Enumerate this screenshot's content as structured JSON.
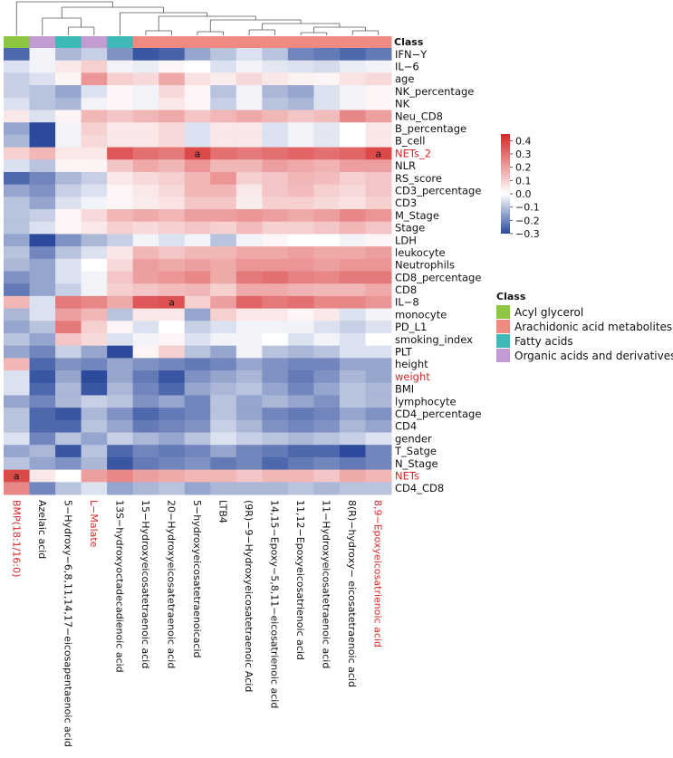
{
  "chart_data": {
    "type": "heatmap",
    "columns": [
      {
        "label": "BMP(18:1/16:0)",
        "class": "Acyl glycerol",
        "highlight": true
      },
      {
        "label": "Azelaic acid",
        "class": "Organic acids and derivatives",
        "highlight": false
      },
      {
        "label": "5−Hydroxy−6,8,11,14,17−eicosapentaenoic acid",
        "class": "Fatty acids",
        "highlight": false
      },
      {
        "label": "L−Malate",
        "class": "Organic acids and derivatives",
        "highlight": true
      },
      {
        "label": "13S−hydroxyoctadecadienoic acid",
        "class": "Fatty acids",
        "highlight": false
      },
      {
        "label": "15−Hydroxyeicosatetraenoic acid",
        "class": "Arachidonic acid metabolites",
        "highlight": false
      },
      {
        "label": "20−Hydroxyeicosatetraenoic acid",
        "class": "Arachidonic acid metabolites",
        "highlight": false
      },
      {
        "label": "5−hydroxyeicosatetraenoicacid",
        "class": "Arachidonic acid metabolites",
        "highlight": false
      },
      {
        "label": "LTB4",
        "class": "Arachidonic acid metabolites",
        "highlight": false
      },
      {
        "label": "(9R)−9−Hydroxyeicosatetraenoic Acid",
        "class": "Arachidonic acid metabolites",
        "highlight": false
      },
      {
        "label": "14,15−Epoxy−5,8,11−eicosatrienoic acid",
        "class": "Arachidonic acid metabolites",
        "highlight": false
      },
      {
        "label": "11,12−Epoxyeicosatrienoic acid",
        "class": "Arachidonic acid metabolites",
        "highlight": false
      },
      {
        "label": "11−Hydroxyeicosatetraenoic acid",
        "class": "Arachidonic acid metabolites",
        "highlight": false
      },
      {
        "label": "8(R)−hydroxy− eicosatetraenoic acid",
        "class": "Arachidonic acid metabolites",
        "highlight": false
      },
      {
        "label": "8,9−Epoxyeicosatrienoic acid",
        "class": "Arachidonic acid metabolites",
        "highlight": true
      }
    ],
    "rows": [
      {
        "label": "IFN−Y",
        "highlight": false,
        "values": [
          -0.25,
          -0.02,
          -0.12,
          -0.08,
          -0.18,
          -0.28,
          -0.26,
          -0.15,
          -0.1,
          -0.05,
          -0.1,
          -0.2,
          -0.22,
          -0.25,
          -0.22
        ]
      },
      {
        "label": "IL−6",
        "highlight": false,
        "values": [
          -0.05,
          -0.02,
          0.05,
          0.1,
          -0.02,
          -0.03,
          0.02,
          0.0,
          -0.05,
          -0.02,
          -0.04,
          -0.05,
          -0.06,
          -0.03,
          -0.02
        ]
      },
      {
        "label": "age",
        "highlight": false,
        "values": [
          -0.08,
          -0.05,
          0.02,
          0.22,
          0.1,
          0.08,
          0.18,
          0.06,
          0.04,
          0.08,
          0.05,
          0.03,
          0.02,
          0.06,
          0.08
        ]
      },
      {
        "label": "NK_percentage",
        "highlight": false,
        "values": [
          -0.08,
          -0.1,
          -0.15,
          -0.05,
          0.02,
          -0.02,
          0.08,
          0.02,
          -0.1,
          -0.02,
          -0.12,
          -0.15,
          -0.05,
          -0.02,
          0.02
        ]
      },
      {
        "label": "NK",
        "highlight": false,
        "values": [
          -0.05,
          -0.1,
          -0.12,
          -0.02,
          0.02,
          -0.02,
          0.05,
          0.02,
          -0.08,
          -0.02,
          -0.1,
          -0.12,
          -0.05,
          -0.02,
          0.02
        ]
      },
      {
        "label": "Neu_CD8",
        "highlight": false,
        "values": [
          0.05,
          -0.05,
          0.02,
          0.15,
          0.12,
          0.15,
          0.18,
          0.12,
          0.15,
          0.18,
          0.15,
          0.12,
          0.14,
          0.25,
          0.2
        ]
      },
      {
        "label": "B_percentage",
        "highlight": false,
        "values": [
          -0.15,
          -0.3,
          -0.02,
          0.1,
          0.05,
          0.05,
          0.08,
          -0.05,
          0.05,
          0.05,
          -0.05,
          -0.02,
          -0.04,
          0.0,
          0.05
        ]
      },
      {
        "label": "B_cell",
        "highlight": false,
        "values": [
          -0.12,
          -0.3,
          -0.02,
          0.08,
          0.05,
          0.05,
          0.08,
          -0.05,
          0.05,
          0.05,
          -0.05,
          -0.02,
          -0.04,
          0.0,
          0.05
        ]
      },
      {
        "label": "NETs_2",
        "highlight": true,
        "values": [
          0.1,
          0.15,
          0.05,
          0.05,
          0.35,
          0.3,
          0.28,
          0.38,
          0.3,
          0.28,
          0.3,
          0.32,
          0.3,
          0.32,
          0.38
        ]
      },
      {
        "label": "NLR",
        "highlight": false,
        "values": [
          -0.05,
          -0.1,
          0.02,
          0.02,
          0.12,
          0.18,
          0.15,
          0.22,
          0.15,
          0.15,
          0.2,
          0.18,
          0.16,
          0.2,
          0.2
        ]
      },
      {
        "label": "RS_score",
        "highlight": false,
        "values": [
          -0.25,
          -0.2,
          -0.12,
          -0.08,
          0.05,
          0.08,
          0.1,
          0.15,
          0.22,
          0.1,
          0.12,
          0.15,
          0.14,
          0.1,
          0.12
        ]
      },
      {
        "label": "CD3_percentage",
        "highlight": false,
        "values": [
          -0.15,
          -0.18,
          -0.08,
          -0.05,
          0.02,
          0.05,
          0.08,
          0.15,
          0.15,
          0.05,
          0.12,
          0.14,
          0.1,
          0.08,
          0.12
        ]
      },
      {
        "label": "CD3",
        "highlight": false,
        "values": [
          -0.1,
          -0.15,
          -0.05,
          -0.02,
          0.02,
          0.04,
          0.06,
          0.12,
          0.12,
          0.04,
          0.1,
          0.1,
          0.08,
          0.06,
          0.1
        ]
      },
      {
        "label": "M_Stage",
        "highlight": false,
        "values": [
          -0.1,
          -0.08,
          0.02,
          0.08,
          0.15,
          0.18,
          0.15,
          0.2,
          0.2,
          0.22,
          0.2,
          0.18,
          0.2,
          0.25,
          0.22
        ]
      },
      {
        "label": "Stage",
        "highlight": false,
        "values": [
          -0.1,
          -0.05,
          0.02,
          0.05,
          0.1,
          0.08,
          0.1,
          0.12,
          0.1,
          0.14,
          0.1,
          0.1,
          0.12,
          0.15,
          0.12
        ]
      },
      {
        "label": "LDH",
        "highlight": false,
        "values": [
          -0.15,
          -0.3,
          -0.18,
          -0.12,
          -0.08,
          -0.02,
          -0.05,
          -0.02,
          -0.1,
          -0.02,
          0.02,
          0.0,
          0.0,
          -0.02,
          0.02
        ]
      },
      {
        "label": "leukocyte",
        "highlight": false,
        "values": [
          -0.1,
          -0.2,
          -0.1,
          -0.05,
          0.05,
          0.15,
          0.12,
          0.15,
          0.15,
          0.18,
          0.18,
          0.2,
          0.18,
          0.18,
          0.2
        ]
      },
      {
        "label": "Neutrophils",
        "highlight": false,
        "values": [
          -0.12,
          -0.15,
          -0.05,
          0.0,
          0.08,
          0.2,
          0.18,
          0.2,
          0.18,
          0.22,
          0.22,
          0.22,
          0.2,
          0.22,
          0.22
        ]
      },
      {
        "label": "CD8_percentage",
        "highlight": false,
        "values": [
          -0.18,
          -0.15,
          -0.05,
          -0.02,
          0.12,
          0.2,
          0.22,
          0.25,
          0.18,
          0.28,
          0.3,
          0.26,
          0.25,
          0.28,
          0.28
        ]
      },
      {
        "label": "CD8",
        "highlight": false,
        "values": [
          -0.22,
          -0.15,
          -0.08,
          -0.02,
          0.1,
          0.12,
          0.14,
          0.15,
          0.1,
          0.18,
          0.18,
          0.16,
          0.15,
          0.15,
          0.18
        ]
      },
      {
        "label": "IL−8",
        "highlight": false,
        "values": [
          0.15,
          -0.05,
          0.28,
          0.25,
          0.18,
          0.35,
          0.36,
          0.1,
          0.2,
          0.32,
          0.28,
          0.3,
          0.25,
          0.25,
          0.22
        ]
      },
      {
        "label": "monocyte",
        "highlight": false,
        "values": [
          -0.12,
          -0.05,
          0.2,
          0.15,
          -0.1,
          0.05,
          0.05,
          -0.15,
          0.1,
          0.05,
          0.05,
          0.02,
          0.05,
          -0.05,
          -0.02
        ]
      },
      {
        "label": "PD_L1",
        "highlight": false,
        "values": [
          -0.15,
          -0.1,
          0.28,
          0.1,
          0.02,
          -0.05,
          0.0,
          -0.08,
          -0.05,
          -0.02,
          -0.02,
          -0.02,
          -0.05,
          -0.08,
          -0.05
        ]
      },
      {
        "label": "smoking_index",
        "highlight": false,
        "values": [
          -0.1,
          -0.15,
          0.12,
          0.08,
          -0.05,
          -0.02,
          0.02,
          -0.05,
          -0.02,
          -0.02,
          0.0,
          -0.05,
          -0.02,
          -0.05,
          0.0
        ]
      },
      {
        "label": "PLT",
        "highlight": false,
        "values": [
          -0.15,
          -0.2,
          -0.08,
          -0.15,
          -0.3,
          0.02,
          0.1,
          -0.1,
          -0.15,
          -0.02,
          -0.1,
          -0.12,
          -0.1,
          -0.05,
          -0.05
        ]
      },
      {
        "label": "height",
        "highlight": false,
        "values": [
          0.15,
          -0.25,
          -0.18,
          -0.2,
          -0.15,
          -0.18,
          -0.2,
          -0.22,
          -0.2,
          -0.15,
          -0.18,
          -0.2,
          -0.2,
          -0.15,
          -0.15
        ]
      },
      {
        "label": "weight",
        "highlight": true,
        "values": [
          -0.05,
          -0.28,
          -0.15,
          -0.32,
          -0.15,
          -0.22,
          -0.28,
          -0.18,
          -0.15,
          -0.12,
          -0.18,
          -0.22,
          -0.18,
          -0.12,
          -0.15
        ]
      },
      {
        "label": "BMI",
        "highlight": false,
        "values": [
          -0.05,
          -0.25,
          -0.12,
          -0.28,
          -0.12,
          -0.2,
          -0.25,
          -0.15,
          -0.12,
          -0.1,
          -0.15,
          -0.2,
          -0.15,
          -0.1,
          -0.12
        ]
      },
      {
        "label": "lymphocyte",
        "highlight": false,
        "values": [
          -0.15,
          -0.2,
          -0.12,
          -0.08,
          -0.1,
          -0.18,
          -0.15,
          -0.2,
          -0.1,
          -0.15,
          -0.12,
          -0.15,
          -0.18,
          -0.1,
          -0.12
        ]
      },
      {
        "label": "CD4_percentage",
        "highlight": false,
        "values": [
          -0.1,
          -0.25,
          -0.28,
          -0.12,
          -0.18,
          -0.25,
          -0.22,
          -0.2,
          -0.1,
          -0.15,
          -0.2,
          -0.22,
          -0.2,
          -0.15,
          -0.18
        ]
      },
      {
        "label": "CD4",
        "highlight": false,
        "values": [
          -0.1,
          -0.25,
          -0.25,
          -0.1,
          -0.15,
          -0.22,
          -0.2,
          -0.18,
          -0.08,
          -0.12,
          -0.18,
          -0.2,
          -0.18,
          -0.12,
          -0.15
        ]
      },
      {
        "label": "gender",
        "highlight": false,
        "values": [
          -0.05,
          -0.2,
          -0.1,
          -0.15,
          -0.08,
          -0.12,
          -0.15,
          -0.1,
          -0.05,
          -0.08,
          -0.1,
          -0.12,
          -0.1,
          -0.08,
          -0.05
        ]
      },
      {
        "label": "T_Satge",
        "highlight": false,
        "values": [
          -0.15,
          -0.12,
          -0.28,
          -0.1,
          -0.25,
          -0.2,
          -0.22,
          -0.2,
          -0.15,
          -0.2,
          -0.22,
          -0.25,
          -0.25,
          -0.3,
          -0.2
        ]
      },
      {
        "label": "N_Stage",
        "highlight": false,
        "values": [
          -0.1,
          -0.15,
          -0.18,
          -0.12,
          -0.28,
          -0.22,
          -0.2,
          -0.18,
          -0.22,
          -0.2,
          -0.25,
          -0.22,
          -0.2,
          -0.22,
          -0.2
        ]
      },
      {
        "label": "NETs",
        "highlight": true,
        "values": [
          0.38,
          0.05,
          0.0,
          0.2,
          0.25,
          0.2,
          0.18,
          0.15,
          0.15,
          0.12,
          0.15,
          0.15,
          0.12,
          0.18,
          0.15
        ]
      },
      {
        "label": "CD4_CD8",
        "highlight": false,
        "values": [
          0.25,
          -0.2,
          -0.1,
          -0.05,
          -0.15,
          -0.12,
          -0.1,
          -0.15,
          -0.12,
          -0.12,
          -0.12,
          -0.1,
          -0.12,
          -0.1,
          -0.1
        ]
      }
    ],
    "significance_markers": [
      {
        "row": "NETs_2",
        "column": "5−hydroxyeicosatetraenoicacid",
        "text": "a"
      },
      {
        "row": "NETs_2",
        "column": "8,9−Epoxyeicosatrienoic acid",
        "text": "a"
      },
      {
        "row": "IL−8",
        "column": "20−Hydroxyeicosatetraenoic acid",
        "text": "a"
      },
      {
        "row": "NETs",
        "column": "BMP(18:1/16:0)",
        "text": "a"
      }
    ],
    "column_annotation_title": "Class",
    "color_scale": {
      "range": [
        -0.3,
        0.45
      ],
      "ticks": [
        "0.4",
        "0.3",
        "0.2",
        "0.1",
        "0.0",
        "−0.1",
        "−0.2",
        "−0.3"
      ],
      "low_color": "#2b4a9c",
      "mid_color": "#ffffff",
      "high_color": "#d62728"
    },
    "legend": {
      "title": "Class",
      "entries": [
        {
          "label": "Acyl glycerol",
          "color": "#8dc63f"
        },
        {
          "label": "Arachidonic acid metabolites",
          "color": "#f08a80"
        },
        {
          "label": "Fatty acids",
          "color": "#3fb8b8"
        },
        {
          "label": "Organic acids and derivatives",
          "color": "#c39bd3"
        }
      ]
    },
    "highlight_color": "#d62728"
  }
}
